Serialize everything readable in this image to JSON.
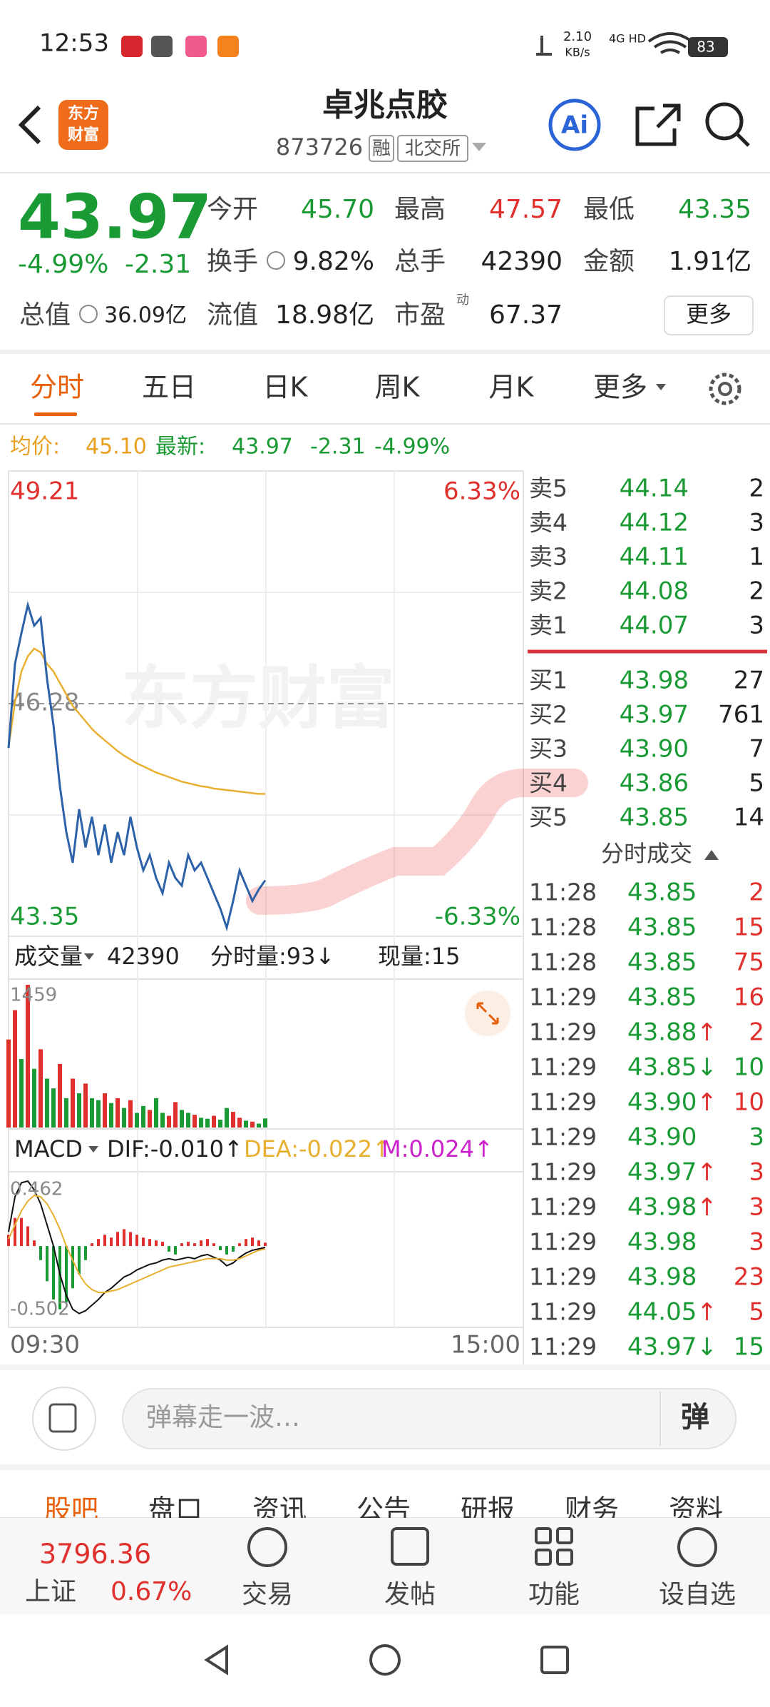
{
  "status_bar": {
    "time": "12:53",
    "net_speed": "2.10",
    "net_unit": "KB/s",
    "signal": "4G HD",
    "battery": "83"
  },
  "header": {
    "logo": [
      "东方",
      "财富"
    ],
    "title": "卓兆点胶",
    "code": "873726",
    "tags": [
      "融",
      "北交所"
    ],
    "ai": "Ai"
  },
  "quote": {
    "price": "43.97",
    "change_pct": "-4.99%",
    "change": "-2.31",
    "color": "#1a9a34",
    "fields": [
      {
        "label": "今开",
        "value": "45.70",
        "color": "#1a9a34"
      },
      {
        "label": "最高",
        "value": "47.57",
        "color": "#e0302d"
      },
      {
        "label": "最低",
        "value": "43.35",
        "color": "#1a9a34"
      },
      {
        "label": "换手",
        "value": "9.82%",
        "color": "#222222"
      },
      {
        "label": "总手",
        "value": "42390",
        "color": "#222222"
      },
      {
        "label": "金额",
        "value": "1.91亿",
        "color": "#222222"
      },
      {
        "label": "总值",
        "value": "36.09亿",
        "color": "#222222"
      },
      {
        "label": "流值",
        "value": "18.98亿",
        "color": "#222222"
      },
      {
        "label": "市盈",
        "value": "67.37",
        "color": "#222222",
        "tag": "动"
      }
    ],
    "more": "更多"
  },
  "tabs": [
    "分时",
    "五日",
    "日K",
    "周K",
    "月K",
    "更多"
  ],
  "legend_line": {
    "avg_label": "均价:",
    "avg": "45.10",
    "latest_label": "最新:",
    "latest": "43.97",
    "change": "-2.31",
    "change_pct": "-4.99%"
  },
  "price_chart": {
    "type": "line",
    "watermark": "东方财富",
    "ylim": [
      43.35,
      49.21
    ],
    "mid": 46.28,
    "pct_top": "6.33%",
    "pct_bottom": "-6.33%",
    "x_labels": [
      "09:30",
      "15:00"
    ],
    "price_color": "#2e62a8",
    "avg_color": "#e8b030",
    "price": [
      45.7,
      46.8,
      47.2,
      47.57,
      47.3,
      47.4,
      46.6,
      46.0,
      45.2,
      44.6,
      44.2,
      44.9,
      44.4,
      44.8,
      44.3,
      44.7,
      44.2,
      44.6,
      44.3,
      44.8,
      44.4,
      44.1,
      44.3,
      44.0,
      43.8,
      44.2,
      44.0,
      43.9,
      44.3,
      44.1,
      44.2,
      44.0,
      43.8,
      43.6,
      43.35,
      43.7,
      44.1,
      43.9,
      43.7,
      43.85,
      43.97
    ],
    "avg": [
      45.7,
      46.3,
      46.7,
      46.9,
      47.0,
      46.95,
      46.8,
      46.7,
      46.55,
      46.4,
      46.25,
      46.15,
      46.05,
      45.95,
      45.87,
      45.8,
      45.73,
      45.66,
      45.6,
      45.55,
      45.5,
      45.46,
      45.42,
      45.38,
      45.35,
      45.32,
      45.29,
      45.26,
      45.24,
      45.22,
      45.2,
      45.19,
      45.17,
      45.16,
      45.15,
      45.14,
      45.13,
      45.12,
      45.11,
      45.1,
      45.1
    ]
  },
  "volume": {
    "label": "成交量",
    "total": "42390",
    "period": "分时量:93↓",
    "current": "现量:15",
    "ylim": [
      0,
      1459
    ],
    "up_color": "#e0302d",
    "down_color": "#1a9a34",
    "values": [
      900,
      1200,
      700,
      1459,
      600,
      800,
      500,
      400,
      650,
      300,
      500,
      350,
      450,
      300,
      280,
      350,
      250,
      300,
      200,
      280,
      150,
      220,
      180,
      300,
      150,
      120,
      260,
      180,
      150,
      130,
      100,
      90,
      120,
      80,
      200,
      160,
      100,
      70,
      60,
      40,
      93
    ],
    "rising": [
      true,
      true,
      false,
      true,
      false,
      true,
      false,
      false,
      true,
      false,
      true,
      false,
      true,
      false,
      false,
      true,
      false,
      true,
      false,
      true,
      false,
      false,
      true,
      false,
      false,
      true,
      true,
      false,
      false,
      true,
      false,
      false,
      true,
      false,
      false,
      true,
      true,
      false,
      true,
      false,
      false
    ]
  },
  "macd": {
    "label": "MACD",
    "dif": "DIF:-0.010↑",
    "dea": "DEA:-0.022↑",
    "m": "M:0.024↑",
    "ylim": [
      -0.502,
      0.462
    ],
    "dif_color": "#111111",
    "dea_color": "#e8b030",
    "m_color": "#cc22cc",
    "pos_color": "#e0302d",
    "neg_color": "#1a9a34",
    "dif_values": [
      0.1,
      0.35,
      0.45,
      0.462,
      0.4,
      0.3,
      0.15,
      0,
      -0.2,
      -0.35,
      -0.45,
      -0.48,
      -0.46,
      -0.42,
      -0.38,
      -0.33,
      -0.3,
      -0.26,
      -0.22,
      -0.2,
      -0.17,
      -0.15,
      -0.13,
      -0.12,
      -0.1,
      -0.09,
      -0.1,
      -0.09,
      -0.08,
      -0.09,
      -0.07,
      -0.06,
      -0.08,
      -0.1,
      -0.14,
      -0.12,
      -0.08,
      -0.05,
      -0.03,
      -0.02,
      -0.01
    ],
    "dea_values": [
      0.05,
      0.15,
      0.25,
      0.32,
      0.36,
      0.35,
      0.3,
      0.22,
      0.12,
      0.0,
      -0.1,
      -0.2,
      -0.27,
      -0.31,
      -0.33,
      -0.33,
      -0.32,
      -0.31,
      -0.29,
      -0.27,
      -0.25,
      -0.23,
      -0.21,
      -0.19,
      -0.17,
      -0.15,
      -0.14,
      -0.13,
      -0.12,
      -0.11,
      -0.1,
      -0.09,
      -0.09,
      -0.09,
      -0.1,
      -0.1,
      -0.09,
      -0.07,
      -0.05,
      -0.03,
      -0.022
    ],
    "m_values": [
      0.08,
      0.2,
      0.2,
      0.14,
      0.04,
      -0.1,
      -0.25,
      -0.38,
      -0.45,
      -0.4,
      -0.3,
      -0.2,
      -0.1,
      0.02,
      0.05,
      0.08,
      0.06,
      0.1,
      0.12,
      0.1,
      0.08,
      0.06,
      0.05,
      0.04,
      0.03,
      -0.04,
      -0.06,
      0.02,
      0.03,
      0.02,
      0.04,
      0.05,
      0.02,
      -0.03,
      -0.06,
      -0.04,
      0.02,
      0.05,
      0.06,
      0.04,
      0.024
    ]
  },
  "order_book": {
    "asks": [
      {
        "label": "卖5",
        "price": "44.14",
        "volume": "2"
      },
      {
        "label": "卖4",
        "price": "44.12",
        "volume": "3"
      },
      {
        "label": "卖3",
        "price": "44.11",
        "volume": "1"
      },
      {
        "label": "卖2",
        "price": "44.08",
        "volume": "2"
      },
      {
        "label": "卖1",
        "price": "44.07",
        "volume": "3"
      }
    ],
    "bids": [
      {
        "label": "买1",
        "price": "43.98",
        "volume": "27"
      },
      {
        "label": "买2",
        "price": "43.97",
        "volume": "761"
      },
      {
        "label": "买3",
        "price": "43.90",
        "volume": "7"
      },
      {
        "label": "买4",
        "price": "43.86",
        "volume": "5"
      },
      {
        "label": "买5",
        "price": "43.85",
        "volume": "14"
      }
    ]
  },
  "trades": {
    "title": "分时成交",
    "rows": [
      {
        "time": "11:28",
        "price": "43.85",
        "volume": "2",
        "volume_color": "#e0302d"
      },
      {
        "time": "11:28",
        "price": "43.85",
        "volume": "15",
        "volume_color": "#e0302d"
      },
      {
        "time": "11:28",
        "price": "43.85",
        "volume": "75",
        "volume_color": "#e0302d"
      },
      {
        "time": "11:29",
        "price": "43.85",
        "volume": "16",
        "volume_color": "#e0302d"
      },
      {
        "time": "11:29",
        "price": "43.88",
        "arrow": "↑",
        "arrow_color": "#e0302d",
        "volume": "2",
        "volume_color": "#e0302d"
      },
      {
        "time": "11:29",
        "price": "43.85",
        "arrow": "↓",
        "arrow_color": "#1a9a34",
        "volume": "10",
        "volume_color": "#1a9a34"
      },
      {
        "time": "11:29",
        "price": "43.90",
        "arrow": "↑",
        "arrow_color": "#e0302d",
        "volume": "10",
        "volume_color": "#e0302d"
      },
      {
        "time": "11:29",
        "price": "43.90",
        "volume": "3",
        "volume_color": "#1a9a34"
      },
      {
        "time": "11:29",
        "price": "43.97",
        "arrow": "↑",
        "arrow_color": "#e0302d",
        "volume": "3",
        "volume_color": "#e0302d"
      },
      {
        "time": "11:29",
        "price": "43.98",
        "arrow": "↑",
        "arrow_color": "#e0302d",
        "volume": "3",
        "volume_color": "#e0302d"
      },
      {
        "time": "11:29",
        "price": "43.98",
        "volume": "3",
        "volume_color": "#e0302d"
      },
      {
        "time": "11:29",
        "price": "43.98",
        "volume": "23",
        "volume_color": "#e0302d"
      },
      {
        "time": "11:29",
        "price": "44.05",
        "arrow": "↑",
        "arrow_color": "#e0302d",
        "volume": "5",
        "volume_color": "#e0302d"
      },
      {
        "time": "11:29",
        "price": "43.97",
        "arrow": "↓",
        "arrow_color": "#1a9a34",
        "volume": "15",
        "volume_color": "#1a9a34"
      }
    ]
  },
  "comment": {
    "placeholder": "弹幕走一波…",
    "button": "弹"
  },
  "sub_tabs": [
    "股吧",
    "盘口",
    "资讯",
    "公告",
    "研报",
    "财务",
    "资料"
  ],
  "footer": {
    "index_value": "3796.36",
    "index_name": "上证",
    "index_change": "0.67%",
    "items": [
      "交易",
      "发帖",
      "功能",
      "设自选"
    ]
  }
}
